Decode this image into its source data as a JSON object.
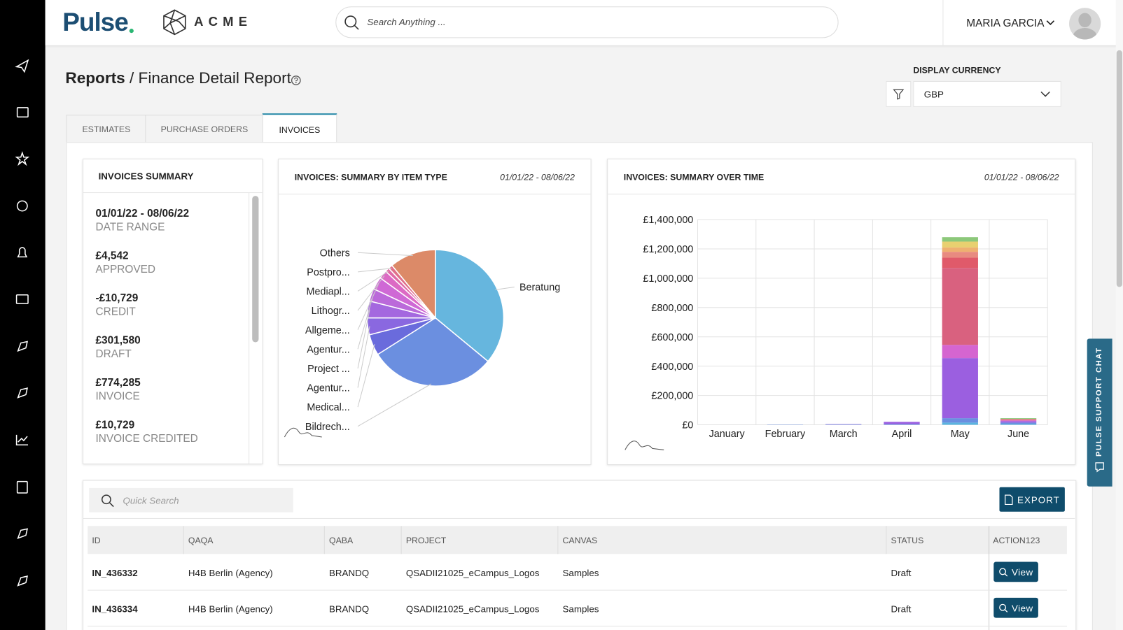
{
  "header": {
    "brand": "Pulse",
    "client": "ACME",
    "search_placeholder": "Search Anything ...",
    "user": "MARIA GARCIA"
  },
  "breadcrumb": {
    "root": "Reports",
    "separator": "/",
    "page": "Finance Detail Report"
  },
  "currency": {
    "label": "DISPLAY CURRENCY",
    "value": "GBP"
  },
  "tabs": [
    "ESTIMATES",
    "PURCHASE ORDERS",
    "INVOICES"
  ],
  "summary": {
    "title": "INVOICES SUMMARY",
    "items": [
      {
        "value": "01/01/22 - 08/06/22",
        "label": "DATE RANGE"
      },
      {
        "value": "£4,542",
        "label": "APPROVED"
      },
      {
        "value": "-£10,729",
        "label": "CREDIT"
      },
      {
        "value": "£301,580",
        "label": "DRAFT"
      },
      {
        "value": "£774,285",
        "label": "INVOICE"
      },
      {
        "value": "£10,729",
        "label": "INVOICE CREDITED"
      }
    ]
  },
  "chart_data": [
    {
      "type": "pie",
      "title": "INVOICES: SUMMARY BY ITEM TYPE",
      "date_range": "01/01/22 - 08/06/22",
      "categories": [
        "Beratung",
        "Bildrech...",
        "Medical...",
        "Agentur...",
        "Project ...",
        "Agentur...",
        "Allgeme...",
        "Lithogr...",
        "Mediapl...",
        "Postpro...",
        "Others"
      ],
      "values": [
        36,
        30,
        5,
        4,
        4,
        3,
        3,
        2,
        1,
        1,
        11
      ],
      "colors": [
        "#66b6de",
        "#6b8fe0",
        "#6a6bdc",
        "#8a68e0",
        "#a468df",
        "#bb69da",
        "#cf69d5",
        "#dc6ac4",
        "#e06aa6",
        "#e0708a",
        "#dc8a68"
      ]
    },
    {
      "type": "bar",
      "stacked": true,
      "title": "INVOICES: SUMMARY OVER TIME",
      "date_range": "01/01/22 - 08/06/22",
      "categories": [
        "January",
        "February",
        "March",
        "April",
        "May",
        "June"
      ],
      "series": [
        {
          "color": "#5bb5e0",
          "values": [
            0,
            0,
            0,
            0,
            15000,
            5000
          ]
        },
        {
          "color": "#6a8fe0",
          "values": [
            0,
            2000,
            3000,
            5000,
            30000,
            10000
          ]
        },
        {
          "color": "#9b5fe0",
          "values": [
            0,
            0,
            2000,
            15000,
            410000,
            10000
          ]
        },
        {
          "color": "#d565d0",
          "values": [
            0,
            0,
            0,
            0,
            90000,
            5000
          ]
        },
        {
          "color": "#d9617f",
          "values": [
            0,
            0,
            0,
            0,
            525000,
            5000
          ]
        },
        {
          "color": "#e05a6a",
          "values": [
            0,
            0,
            0,
            0,
            70000,
            3000
          ]
        },
        {
          "color": "#e88a80",
          "values": [
            0,
            0,
            0,
            0,
            40000,
            2000
          ]
        },
        {
          "color": "#eeb070",
          "values": [
            0,
            0,
            0,
            0,
            30000,
            0
          ]
        },
        {
          "color": "#e8d070",
          "values": [
            0,
            0,
            0,
            0,
            40000,
            0
          ]
        },
        {
          "color": "#8cc87a",
          "values": [
            0,
            0,
            0,
            0,
            30000,
            5000
          ]
        }
      ],
      "ylim": [
        0,
        1400000
      ],
      "yticks": [
        {
          "value": 0,
          "label": "£0"
        },
        {
          "value": 200000,
          "label": "£200,000"
        },
        {
          "value": 400000,
          "label": "£400,000"
        },
        {
          "value": 600000,
          "label": "£600,000"
        },
        {
          "value": 800000,
          "label": "£800,000"
        },
        {
          "value": 1000000,
          "label": "£1,000,000"
        },
        {
          "value": 1200000,
          "label": "£1,200,000"
        },
        {
          "value": 1400000,
          "label": "£1,400,000"
        }
      ],
      "grid": true
    }
  ],
  "table": {
    "search_placeholder": "Quick Search",
    "export": "EXPORT",
    "columns": [
      "ID",
      "QAQA",
      "QABA",
      "PROJECT",
      "CANVAS",
      "STATUS",
      "ACTION123"
    ],
    "rows": [
      [
        "IN_436332",
        "H4B Berlin (Agency)",
        "BRANDQ",
        "QSADII21025_eCampus_Logos",
        "Samples",
        "Draft",
        "View"
      ],
      [
        "IN_436334",
        "H4B Berlin (Agency)",
        "BRANDQ",
        "QSADII21025_eCampus_Logos",
        "Samples",
        "Draft",
        "View"
      ]
    ]
  },
  "support_chat": "PULSE SUPPORT CHAT"
}
